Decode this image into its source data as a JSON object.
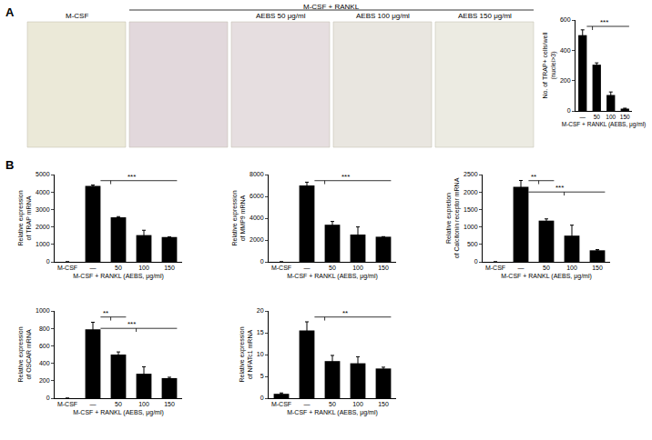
{
  "figure": {
    "panel_labels": [
      "A",
      "B"
    ],
    "micrograph_header": "M-CSF + RANKL",
    "micrographs": [
      "M-CSF",
      null,
      "AEBS 50 μg/ml",
      "AEBS 100 μg/ml",
      "AEBS 150 μg/ml"
    ]
  },
  "chart_data": [
    {
      "type": "bar",
      "ylabel": [
        "No. of TRAP+ cells/well",
        "(nuclei>3)"
      ],
      "xlabel": "M-CSF + RANKL (AEBS, μg/ml)",
      "categories": [
        "—",
        "50",
        "100",
        "150"
      ],
      "values": [
        500,
        305,
        105,
        15
      ],
      "errors": [
        35,
        12,
        20,
        3
      ],
      "color": "#000000",
      "ylim": [
        0,
        600
      ],
      "yticks": [
        0,
        200,
        400,
        600
      ],
      "significance": [
        {
          "label": "***",
          "from": "—",
          "to": [
            "50",
            "150"
          ]
        }
      ]
    },
    {
      "type": "bar",
      "ylabel": [
        "Relative expression",
        "of TRAP mRNA"
      ],
      "xlabel": "M-CSF + RANKL (AEBS, μg/ml)",
      "categories": [
        "M-CSF",
        "—",
        "50",
        "100",
        "150"
      ],
      "values": [
        0,
        4350,
        2550,
        1530,
        1420
      ],
      "errors": [
        0,
        50,
        40,
        280,
        0
      ],
      "color": "#000000",
      "ylim": [
        0,
        5000
      ],
      "yticks": [
        0,
        1000,
        2000,
        3000,
        4000,
        5000
      ],
      "significance": [
        {
          "label": "***",
          "from": "—",
          "to": [
            "50",
            "150"
          ]
        }
      ]
    },
    {
      "type": "bar",
      "ylabel": [
        "Relative expression",
        "of MMP9 mRNA"
      ],
      "xlabel": "M-CSF + RANKL (AEBS, μg/ml)",
      "categories": [
        "M-CSF",
        "—",
        "50",
        "100",
        "150"
      ],
      "values": [
        0,
        7000,
        3400,
        2500,
        2300
      ],
      "errors": [
        0,
        300,
        300,
        700,
        0
      ],
      "color": "#000000",
      "ylim": [
        0,
        8000
      ],
      "yticks": [
        0,
        2000,
        4000,
        6000,
        8000
      ],
      "significance": [
        {
          "label": "***",
          "from": "—",
          "to": [
            "50",
            "150"
          ]
        }
      ]
    },
    {
      "type": "bar",
      "ylabel": [
        "Relative expretion",
        "of Calcitonin receptor mRNA"
      ],
      "xlabel": "M-CSF + RANKL (AEBS, μg/ml)",
      "categories": [
        "M-CSF",
        "—",
        "50",
        "100",
        "150"
      ],
      "values": [
        0,
        2150,
        1180,
        750,
        330
      ],
      "errors": [
        0,
        180,
        50,
        300,
        20
      ],
      "color": "#000000",
      "ylim": [
        0,
        2500
      ],
      "yticks": [
        0,
        500,
        1000,
        1500,
        2000,
        2500
      ],
      "significance": [
        {
          "label": "**",
          "from": "—",
          "to": [
            "50"
          ]
        },
        {
          "label": "***",
          "from": "—",
          "to": [
            "100",
            "150"
          ]
        }
      ]
    },
    {
      "type": "bar",
      "ylabel": [
        "Relative expression",
        "of OSCAR mRNA"
      ],
      "xlabel": "M-CSF + RANKL (AEBS, μg/ml)",
      "categories": [
        "M-CSF",
        "—",
        "50",
        "100",
        "150"
      ],
      "values": [
        0,
        790,
        500,
        280,
        230
      ],
      "errors": [
        0,
        80,
        30,
        80,
        10
      ],
      "color": "#000000",
      "ylim": [
        0,
        1000
      ],
      "yticks": [
        0,
        200,
        400,
        600,
        800,
        1000
      ],
      "significance": [
        {
          "label": "**",
          "from": "—",
          "to": [
            "50"
          ]
        },
        {
          "label": "***",
          "from": "—",
          "to": [
            "100",
            "150"
          ]
        }
      ]
    },
    {
      "type": "bar",
      "ylabel": [
        "Relative expression",
        "of NFATc1 mRNA"
      ],
      "xlabel": "M-CSF + RANKL (AEBS, μg/ml)",
      "categories": [
        "M-CSF",
        "—",
        "50",
        "100",
        "150"
      ],
      "values": [
        1,
        15.5,
        8.5,
        8,
        6.8
      ],
      "errors": [
        0.2,
        2,
        1.3,
        1.5,
        0.3
      ],
      "color": "#000000",
      "ylim": [
        0,
        20
      ],
      "yticks": [
        0,
        5,
        10,
        15,
        20
      ],
      "significance": [
        {
          "label": "**",
          "from": "—",
          "to": [
            "50",
            "150"
          ]
        }
      ]
    }
  ]
}
